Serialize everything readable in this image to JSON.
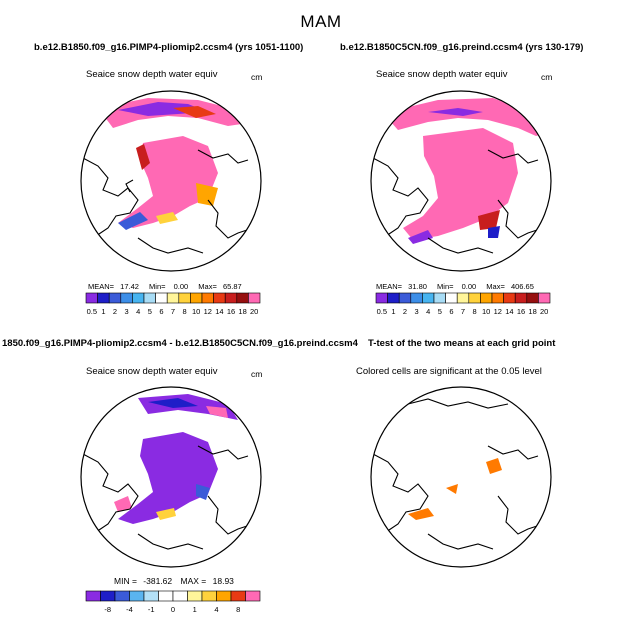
{
  "figure": {
    "title": "MAM"
  },
  "chart_data": [
    {
      "type": "heatmap",
      "case_title": "b.e12.B1850.f09_g16.PIMP4-pliomip2.ccsm4 (yrs 1051-1100)",
      "title": "Seaice snow depth water equiv",
      "units": "cm",
      "stats": {
        "mean_label": "MEAN=",
        "mean": "17.42",
        "min_label": "Min=",
        "min": "0.00",
        "max_label": "Max=",
        "max": "65.87"
      },
      "colorbar": {
        "labels": [
          "0.5",
          "1",
          "2",
          "3",
          "4",
          "5",
          "6",
          "7",
          "8",
          "10",
          "12",
          "14",
          "16",
          "18",
          "20"
        ],
        "colors": [
          "#8a2be2",
          "#1e1ec8",
          "#3b5bd8",
          "#3c8ee8",
          "#47b4f0",
          "#a8dcf5",
          "#ffffff",
          "#fff59a",
          "#ffd23c",
          "#ffa500",
          "#ff7a00",
          "#e83a14",
          "#c81e1e",
          "#960f0f",
          "#ff69b4"
        ]
      },
      "description_region": "Arctic polar stereographic map"
    },
    {
      "type": "heatmap",
      "case_title": "b.e12.B1850C5CN.f09_g16.preind.ccsm4 (yrs 130-179)",
      "title": "Seaice snow depth water equiv",
      "units": "cm",
      "stats": {
        "mean_label": "MEAN=",
        "mean": "31.80",
        "min_label": "Min=",
        "min": "0.00",
        "max_label": "Max=",
        "max": "406.65"
      },
      "colorbar": {
        "labels": [
          "0.5",
          "1",
          "2",
          "3",
          "4",
          "5",
          "6",
          "7",
          "8",
          "10",
          "12",
          "14",
          "16",
          "18",
          "20"
        ],
        "colors": [
          "#8a2be2",
          "#1e1ec8",
          "#3b5bd8",
          "#3c8ee8",
          "#47b4f0",
          "#a8dcf5",
          "#ffffff",
          "#fff59a",
          "#ffd23c",
          "#ffa500",
          "#ff7a00",
          "#e83a14",
          "#c81e1e",
          "#960f0f",
          "#ff69b4"
        ]
      }
    },
    {
      "type": "heatmap",
      "case_title": "1850.f09_g16.PIMP4-pliomip2.ccsm4 - b.e12.B1850C5CN.f09_g16.preind.ccsm4",
      "title": "Seaice snow depth water equiv",
      "units": "cm",
      "stats": {
        "min_label": "MIN =",
        "min": "-381.62",
        "max_label": "MAX =",
        "max": "18.93"
      },
      "colorbar": {
        "labels": [
          "-8",
          "-4",
          "-1",
          "0",
          "1",
          "4",
          "8"
        ],
        "colors": [
          "#8a2be2",
          "#1e1ec8",
          "#3b5bd8",
          "#5ab4f0",
          "#b4e1f8",
          "#ffffff",
          "#ffffff",
          "#fff59a",
          "#ffd23c",
          "#ffa500",
          "#e83a14",
          "#ff69b4"
        ]
      }
    },
    {
      "type": "heatmap",
      "case_title": "T-test of the two means at each grid point",
      "title": "Colored cells are significant at the 0.05 level",
      "units": ""
    }
  ]
}
